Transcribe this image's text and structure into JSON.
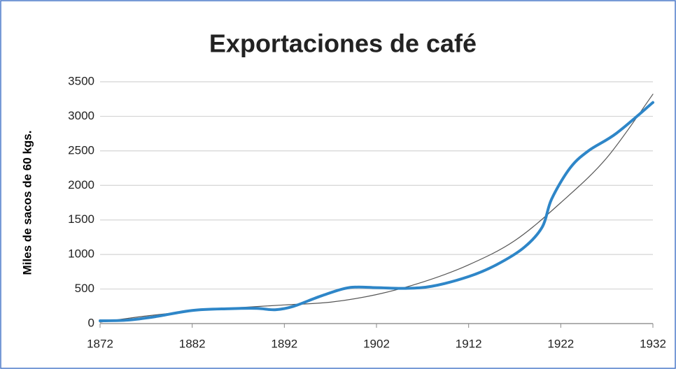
{
  "chart_data": {
    "type": "line",
    "title": "Exportaciones de café",
    "ylabel": "Miles de sacos de 60 kgs.",
    "series": [
      {
        "name": null,
        "color": "#2e86c8",
        "x": [
          1872,
          1875,
          1878,
          1882,
          1886,
          1889,
          1891,
          1893,
          1896,
          1899,
          1902,
          1905,
          1908,
          1912,
          1915,
          1918,
          1920,
          1921,
          1923,
          1925,
          1928,
          1932
        ],
        "values": [
          40,
          50,
          100,
          190,
          215,
          220,
          200,
          250,
          400,
          520,
          520,
          510,
          540,
          680,
          850,
          1100,
          1400,
          1800,
          2250,
          2500,
          2750,
          3200
        ]
      },
      {
        "name": null,
        "color": "#555555",
        "x": [
          1872,
          1877,
          1882,
          1887,
          1892,
          1897,
          1902,
          1907,
          1912,
          1917,
          1922,
          1927,
          1932
        ],
        "values": [
          20,
          110,
          180,
          230,
          270,
          310,
          420,
          600,
          850,
          1200,
          1750,
          2400,
          3320
        ]
      }
    ],
    "xlim": [
      1872,
      1932
    ],
    "xticks": [
      1872,
      1882,
      1892,
      1902,
      1912,
      1922,
      1932
    ],
    "ylim": [
      0,
      3500
    ],
    "yticks": [
      0,
      500,
      1000,
      1500,
      2000,
      2500,
      3000,
      3500
    ],
    "grid": true
  }
}
